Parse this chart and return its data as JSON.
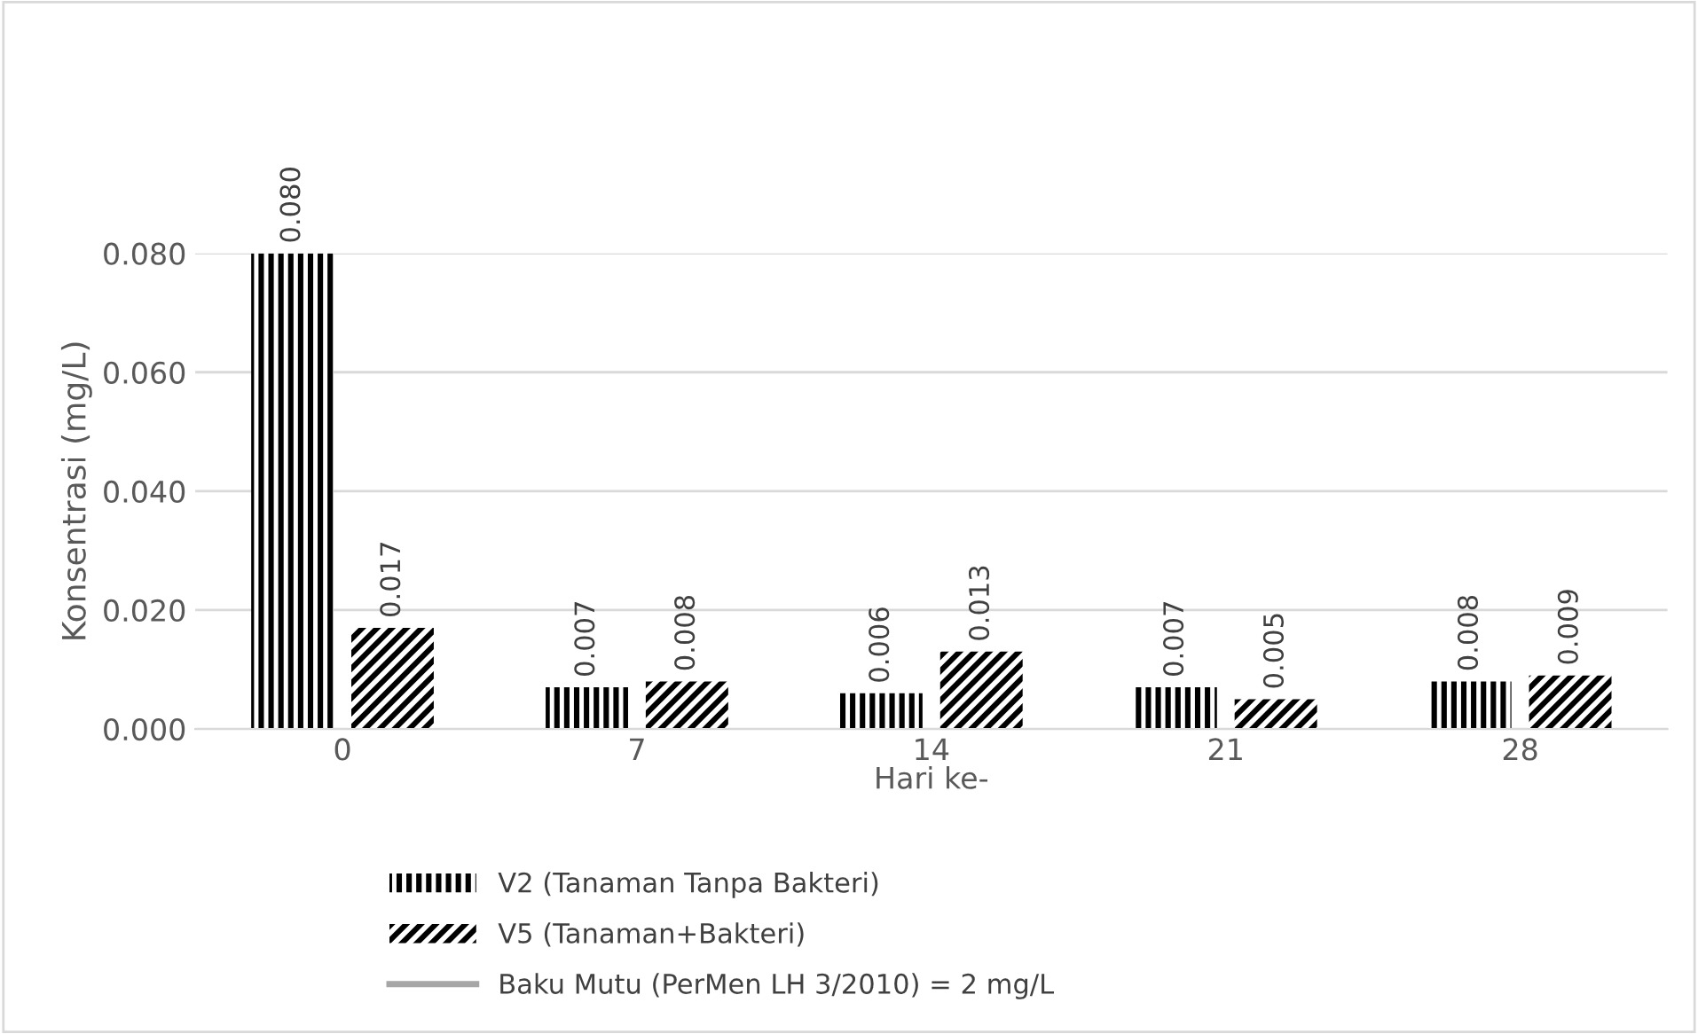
{
  "chart_data": {
    "type": "bar",
    "xlabel": "Hari ke-",
    "ylabel": "Konsentrasi (mg/L)",
    "categories": [
      "0",
      "7",
      "14",
      "21",
      "28"
    ],
    "series": [
      {
        "name": "V2 (Tanaman Tanpa Bakteri)",
        "color": "#000000",
        "values": [
          0.08,
          0.007,
          0.006,
          0.007,
          0.008
        ],
        "value_labels": [
          "0.080",
          "0.007",
          "0.006",
          "0.007",
          "0.008"
        ]
      },
      {
        "name": "V5 (Tanaman+Bakteri)",
        "color": "#000000",
        "values": [
          0.017,
          0.008,
          0.013,
          0.005,
          0.009
        ],
        "value_labels": [
          "0.017",
          "0.008",
          "0.013",
          "0.005",
          "0.009"
        ]
      }
    ],
    "ylim": [
      0,
      0.08
    ],
    "yticks": [
      {
        "value": 0,
        "label": "0.000"
      },
      {
        "value": 0.02,
        "label": "0.020"
      },
      {
        "value": 0.04,
        "label": "0.040"
      },
      {
        "value": 0.06,
        "label": "0.060"
      },
      {
        "value": 0.08,
        "label": "0.080"
      }
    ],
    "grid": "y",
    "legend": "bottom left",
    "annotations": [
      "Baku Mutu (PerMen LH 3/2010) = 2 mg/L"
    ]
  }
}
